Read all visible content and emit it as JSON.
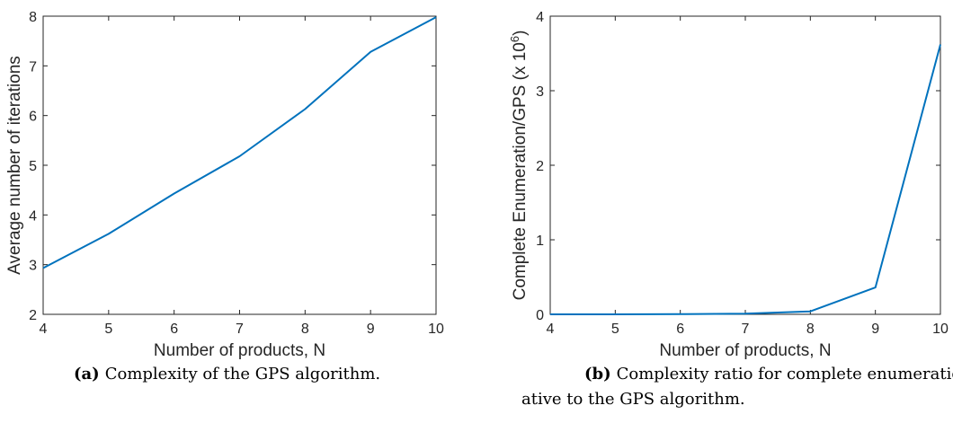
{
  "chart_data": [
    {
      "type": "line",
      "xlabel": "Number of products, N",
      "ylabel": "Average number of iterations",
      "x": [
        4,
        5,
        6,
        7,
        8,
        9,
        10
      ],
      "series": [
        {
          "values": [
            2.93,
            3.62,
            4.43,
            5.18,
            6.13,
            7.28,
            7.98
          ],
          "color": "#0072BD"
        }
      ],
      "xlim": [
        4,
        10
      ],
      "ylim": [
        2,
        8
      ],
      "xticks": [
        4,
        5,
        6,
        7,
        8,
        9,
        10
      ],
      "yticks": [
        2,
        3,
        4,
        5,
        6,
        7,
        8
      ],
      "grid": false
    },
    {
      "type": "line",
      "xlabel": "Number of products, N",
      "ylabel": "Complete Enumeration/GPS (x 10",
      "ylabel_exponent": "6",
      "ylabel_suffix": ")",
      "x": [
        4,
        5,
        6,
        7,
        8,
        9,
        10
      ],
      "series": [
        {
          "values": [
            0.0,
            0.0005,
            0.002,
            0.008,
            0.04,
            0.36,
            3.62
          ],
          "color": "#0072BD"
        }
      ],
      "xlim": [
        4,
        10
      ],
      "ylim": [
        0,
        4
      ],
      "xticks": [
        4,
        5,
        6,
        7,
        8,
        9,
        10
      ],
      "yticks": [
        0,
        1,
        2,
        3,
        4
      ],
      "grid": false
    }
  ],
  "captions": {
    "a_tag": "(a)",
    "a_text": "Complexity of the GPS algorithm.",
    "b_tag": "(b)",
    "b_text": "Complexity ratio for complete enumeration",
    "b_text2": "ative to the GPS algorithm."
  }
}
